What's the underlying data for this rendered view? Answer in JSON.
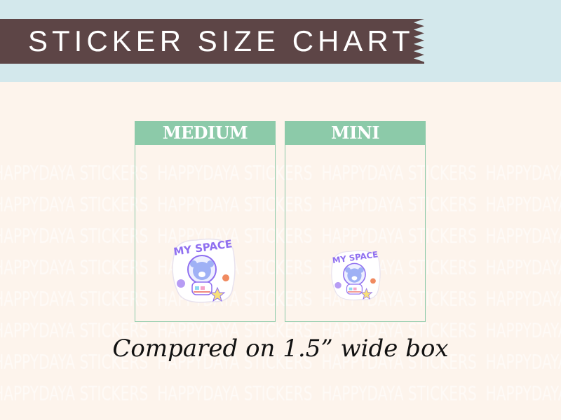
{
  "header": {
    "title": "STICKER SIZE CHART"
  },
  "watermark": {
    "text": "HAPPYDAYA STICKERS"
  },
  "sizes": [
    {
      "label": "MEDIUM",
      "sticker_text": "MY SPACE"
    },
    {
      "label": "MINI",
      "sticker_text": "MY SPACE"
    }
  ],
  "caption": "Compared on 1.5” wide box",
  "colors": {
    "banner": "#5d4546",
    "top_band": "#d3e8ec",
    "box_accent": "#8ccaa9",
    "background": "#fdf4ec",
    "sticker_purple": "#8f6ff0"
  }
}
